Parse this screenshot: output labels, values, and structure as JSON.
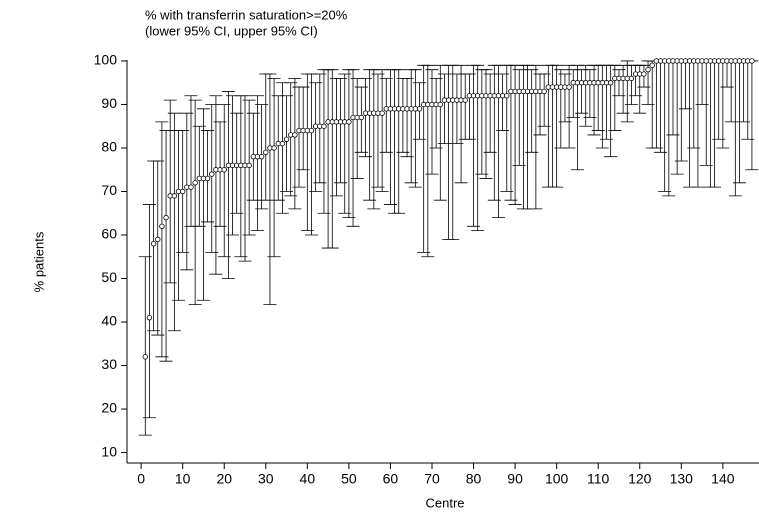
{
  "chart_data": {
    "type": "errorbar",
    "title": "% with transferrin saturation>=20%",
    "subtitle": "(lower 95% CI, upper 95% CI)",
    "x_label": "Centre",
    "y_label": "% patients",
    "xlim": [
      -3.4,
      148.7
    ],
    "ylim": [
      7.6,
      101.6
    ],
    "xticks": [
      0,
      10,
      20,
      30,
      40,
      50,
      60,
      70,
      80,
      90,
      100,
      110,
      120,
      130,
      140
    ],
    "yticks": [
      10,
      20,
      30,
      40,
      50,
      60,
      70,
      80,
      90,
      100
    ],
    "color": "#000000",
    "x": [
      1,
      2,
      3,
      4,
      5,
      6,
      7,
      8,
      9,
      10,
      11,
      12,
      13,
      14,
      15,
      16,
      17,
      18,
      19,
      20,
      21,
      22,
      23,
      24,
      25,
      26,
      27,
      28,
      29,
      30,
      31,
      32,
      33,
      34,
      35,
      36,
      37,
      38,
      39,
      40,
      41,
      42,
      43,
      44,
      45,
      46,
      47,
      48,
      49,
      50,
      51,
      52,
      53,
      54,
      55,
      56,
      57,
      58,
      59,
      60,
      61,
      62,
      63,
      64,
      65,
      66,
      67,
      68,
      69,
      70,
      71,
      72,
      73,
      74,
      75,
      76,
      77,
      78,
      79,
      80,
      81,
      82,
      83,
      84,
      85,
      86,
      87,
      88,
      89,
      90,
      91,
      92,
      93,
      94,
      95,
      96,
      97,
      98,
      99,
      100,
      101,
      102,
      103,
      104,
      105,
      106,
      107,
      108,
      109,
      110,
      111,
      112,
      113,
      114,
      115,
      116,
      117,
      118,
      119,
      120,
      121,
      122,
      123,
      124,
      125,
      126,
      127,
      128,
      129,
      130,
      131,
      132,
      133,
      134,
      135,
      136,
      137,
      138,
      139,
      140,
      141,
      142,
      143,
      144,
      145,
      146,
      147
    ],
    "values": [
      32,
      41,
      58,
      59,
      62,
      64,
      69,
      69,
      70,
      70,
      71,
      71,
      72,
      73,
      73,
      73,
      74,
      75,
      75,
      75,
      76,
      76,
      76,
      76,
      76,
      76,
      78,
      78,
      78,
      79,
      80,
      80,
      81,
      81,
      82,
      83,
      83,
      84,
      84,
      84,
      84,
      85,
      85,
      85,
      86,
      86,
      86,
      86,
      86,
      86,
      87,
      87,
      87,
      88,
      88,
      88,
      88,
      88,
      89,
      89,
      89,
      89,
      89,
      89,
      89,
      89,
      89,
      90,
      90,
      90,
      90,
      90,
      91,
      91,
      91,
      91,
      91,
      91,
      92,
      92,
      92,
      92,
      92,
      92,
      92,
      92,
      92,
      92,
      93,
      93,
      93,
      93,
      93,
      93,
      93,
      93,
      93,
      94,
      94,
      94,
      94,
      94,
      94,
      95,
      95,
      95,
      95,
      95,
      95,
      95,
      95,
      95,
      95,
      96,
      96,
      96,
      96,
      96,
      97,
      97,
      97,
      98,
      99,
      100,
      100,
      100,
      100,
      100,
      100,
      100,
      100,
      100,
      100,
      100,
      100,
      100,
      100,
      100,
      100,
      100,
      100,
      100,
      100,
      100,
      100,
      100,
      100
    ],
    "lower": [
      14,
      18,
      38,
      37,
      32,
      31,
      49,
      38,
      45,
      56,
      52,
      62,
      44,
      62,
      45,
      63,
      56,
      51,
      62,
      55,
      50,
      60,
      65,
      55,
      54,
      60,
      68,
      61,
      66,
      68,
      44,
      55,
      68,
      65,
      70,
      69,
      66,
      71,
      75,
      61,
      60,
      70,
      72,
      65,
      57,
      57,
      69,
      72,
      65,
      64,
      62,
      73,
      79,
      78,
      68,
      66,
      71,
      70,
      79,
      67,
      65,
      65,
      79,
      78,
      72,
      71,
      82,
      56,
      55,
      74,
      80,
      68,
      81,
      59,
      59,
      81,
      72,
      82,
      82,
      62,
      61,
      74,
      73,
      79,
      68,
      64,
      84,
      70,
      68,
      67,
      76,
      66,
      66,
      79,
      66,
      83,
      85,
      71,
      71,
      71,
      80,
      86,
      80,
      87,
      75,
      88,
      85,
      87,
      83,
      84,
      80,
      82,
      78,
      84,
      92,
      88,
      86,
      90,
      92,
      88,
      94,
      90,
      80,
      80,
      79,
      70,
      69,
      83,
      74,
      77,
      89,
      71,
      80,
      71,
      90,
      76,
      71,
      71,
      82,
      80,
      94,
      86,
      69,
      72,
      86,
      82,
      75
    ],
    "upper": [
      55,
      67,
      77,
      77,
      86,
      84,
      91,
      88,
      84,
      84,
      88,
      92,
      91,
      85,
      89,
      84,
      90,
      92,
      86,
      90,
      93,
      92,
      88,
      92,
      92,
      91,
      88,
      92,
      90,
      97,
      97,
      96,
      92,
      95,
      92,
      95,
      96,
      94,
      94,
      97,
      97,
      95,
      97,
      98,
      98,
      98,
      96,
      96,
      97,
      98,
      98,
      96,
      94,
      96,
      98,
      98,
      97,
      98,
      96,
      98,
      98,
      98,
      96,
      96,
      98,
      98,
      95,
      99,
      99,
      98,
      96,
      99,
      97,
      99,
      99,
      97,
      99,
      97,
      97,
      99,
      99,
      98,
      98,
      97,
      99,
      99,
      97,
      99,
      99,
      99,
      98,
      99,
      99,
      98,
      99,
      97,
      97,
      99,
      99,
      99,
      98,
      97,
      99,
      98,
      99,
      98,
      99,
      98,
      99,
      99,
      99,
      99,
      99,
      99,
      98,
      99,
      100,
      99,
      99,
      99,
      99,
      100,
      100,
      100,
      100,
      100,
      100,
      100,
      100,
      100,
      100,
      100,
      100,
      100,
      100,
      100,
      100,
      100,
      100,
      100,
      100,
      100,
      100,
      100,
      100,
      100,
      100
    ]
  }
}
